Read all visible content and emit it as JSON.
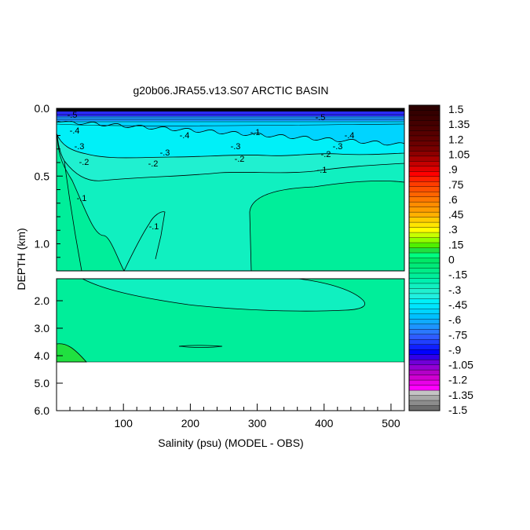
{
  "chart_data": {
    "type": "heatmap",
    "title": "g20b06.JRA55.v13.S07 ARCTIC BASIN",
    "xlabel": "Salinity (psu) (MODEL - OBS)",
    "ylabel": "DEPTH (km)",
    "xlim": [
      0,
      520
    ],
    "x_ticks": [
      "100",
      "200",
      "300",
      "400",
      "500"
    ],
    "upper_panel": {
      "ylim": [
        0.0,
        1.2
      ],
      "y_ticks": [
        "0.0",
        "0.5",
        "1.0"
      ]
    },
    "lower_panel": {
      "ylim": [
        1.2,
        6.0
      ],
      "y_ticks": [
        "2.0",
        "3.0",
        "4.0",
        "5.0",
        "6.0"
      ]
    },
    "contour_labels": [
      "-.5",
      "-.4",
      "-.3",
      "-.2",
      "-.1",
      "-.1",
      "-.2",
      "-.3",
      "-.4",
      "-.3",
      "-.2",
      "-.1",
      "-.1",
      "-.2",
      "-.3",
      "-.4",
      "-.5"
    ],
    "colorbar": {
      "min": -1.5,
      "max": 1.5,
      "step": 0.05,
      "tick_labels": [
        "1.5",
        "1.35",
        "1.2",
        "1.05",
        ".9",
        ".75",
        ".6",
        ".45",
        ".3",
        ".15",
        "0",
        "-.15",
        "-.3",
        "-.45",
        "-.6",
        "-.75",
        "-.9",
        "-1.05",
        "-1.2",
        "-1.35",
        "-1.5"
      ],
      "colors": [
        "#6e6e6e",
        "#8c8c8c",
        "#a8a8a8",
        "#c4c4c4",
        "#ff00ff",
        "#e800e8",
        "#d000d0",
        "#b400c8",
        "#9400d3",
        "#7000d8",
        "#3000e8",
        "#0000ff",
        "#1020ff",
        "#2040ff",
        "#2f5cff",
        "#2a78ff",
        "#1e94ff",
        "#10aaff",
        "#00c0ff",
        "#00d4ff",
        "#00e4ff",
        "#00f0f8",
        "#20f0e0",
        "#20f0d0",
        "#10f0c0",
        "#00f0b0",
        "#00ee9a",
        "#00ec88",
        "#00ea78",
        "#00e868",
        "#00ff7f",
        "#20e040",
        "#50f000",
        "#90ff00",
        "#c8ff00",
        "#ffff00",
        "#ffe500",
        "#ffcc00",
        "#ffb000",
        "#ff9c00",
        "#ff8c00",
        "#ff7800",
        "#ff6400",
        "#ff5000",
        "#ff3c00",
        "#ff2000",
        "#ff0000",
        "#e00000",
        "#c40000",
        "#a80000",
        "#8c0000",
        "#780000",
        "#6a0000",
        "#600000",
        "#560000",
        "#4c0000",
        "#440000",
        "#3c0000",
        "#340000",
        "#2c0000"
      ]
    }
  }
}
